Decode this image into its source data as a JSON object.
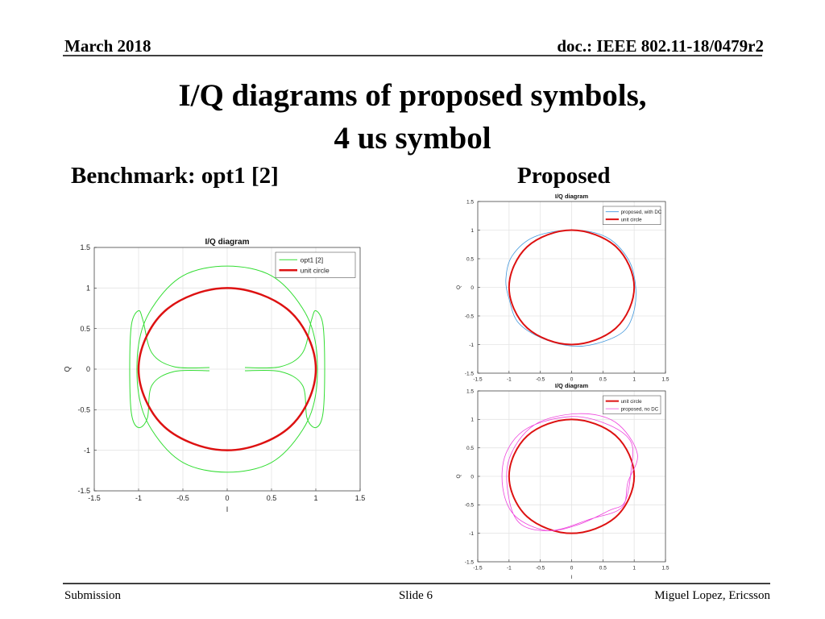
{
  "header": {
    "date": "March 2018",
    "doc": "doc.: IEEE 802.11-18/0479r2"
  },
  "title": [
    "I/Q diagrams of proposed symbols,",
    "4 us symbol"
  ],
  "left_label": "Benchmark: opt1 [2]",
  "right_label": "Proposed",
  "footer": {
    "left": "Submission",
    "center": "Slide 6",
    "right": "Miguel Lopez, Ericsson"
  },
  "chart_data": [
    {
      "type": "line",
      "title": "I/Q diagram",
      "xlabel": "I",
      "ylabel": "Q",
      "xlim": [
        -1.5,
        1.5
      ],
      "ylim": [
        -1.5,
        1.5
      ],
      "xticks": [
        -1.5,
        -1,
        -0.5,
        0,
        0.5,
        1,
        1.5
      ],
      "yticks": [
        -1.5,
        -1,
        -0.5,
        0,
        0.5,
        1,
        1.5
      ],
      "grid": true,
      "legend": "upper right",
      "series": [
        {
          "name": "opt1 [2]",
          "color": "#33dd33",
          "width": 1,
          "x": [
            0,
            0.5,
            0.85,
            1.0,
            1.0,
            0.85,
            0.5,
            0,
            -0.5,
            -0.85,
            -1.0,
            -1.0,
            -0.85,
            -0.5,
            0,
            null,
            0.2,
            0.6,
            0.85,
            0.95,
            1.0,
            1.08,
            1.1,
            1.08,
            1.0,
            0.9,
            0.85,
            0.6,
            0.2,
            null,
            -0.2,
            -0.6,
            -0.85,
            -0.95,
            -1.0,
            -1.08,
            -1.1,
            -1.08,
            -1.0,
            -0.9,
            -0.85,
            -0.6,
            -0.2
          ],
          "y": [
            1.27,
            1.15,
            0.75,
            0.3,
            -0.3,
            -0.75,
            -1.15,
            -1.27,
            -1.15,
            -0.75,
            -0.3,
            0.3,
            0.75,
            1.15,
            1.27,
            null,
            0.02,
            0.03,
            0.2,
            0.6,
            0.72,
            0.55,
            0,
            -0.55,
            -0.72,
            -0.6,
            -0.2,
            -0.03,
            -0.02,
            null,
            0.02,
            0.03,
            0.2,
            0.6,
            0.72,
            0.55,
            0,
            -0.55,
            -0.72,
            -0.6,
            -0.2,
            -0.03,
            -0.02
          ]
        },
        {
          "name": "unit circle",
          "color": "#dd1111",
          "width": 2.5,
          "x": [
            1,
            0.92,
            0.71,
            0.38,
            0,
            -0.38,
            -0.71,
            -0.92,
            -1,
            -0.92,
            -0.71,
            -0.38,
            0,
            0.38,
            0.71,
            0.92,
            1
          ],
          "y": [
            0,
            0.38,
            0.71,
            0.92,
            1,
            0.92,
            0.71,
            0.38,
            0,
            -0.38,
            -0.71,
            -0.92,
            -1,
            -0.92,
            -0.71,
            -0.38,
            0
          ]
        }
      ]
    },
    {
      "type": "line",
      "title": "I/Q diagram",
      "ylabel": "Q",
      "xlim": [
        -1.5,
        1.5
      ],
      "ylim": [
        -1.5,
        1.5
      ],
      "xticks": [
        -1.5,
        -1,
        -0.5,
        0,
        0.5,
        1,
        1.5
      ],
      "yticks": [
        -1.5,
        -1,
        -0.5,
        0,
        0.5,
        1,
        1.5
      ],
      "grid": true,
      "legend": "upper right",
      "series": [
        {
          "name": "proposed, with DC",
          "color": "#4499dd",
          "width": 0.8,
          "x": [
            0,
            0.55,
            0.9,
            1.02,
            1.0,
            0.85,
            0.5,
            0.05,
            -0.45,
            -0.85,
            -1.0,
            -1.05,
            -0.95,
            -0.6,
            0
          ],
          "y": [
            1.0,
            0.88,
            0.5,
            0.05,
            -0.4,
            -0.75,
            -0.95,
            -1.03,
            -0.9,
            -0.62,
            -0.2,
            0.15,
            0.55,
            0.88,
            1.0
          ]
        },
        {
          "name": "unit circle",
          "color": "#dd1111",
          "width": 2,
          "x": [
            1,
            0.92,
            0.71,
            0.38,
            0,
            -0.38,
            -0.71,
            -0.92,
            -1,
            -0.92,
            -0.71,
            -0.38,
            0,
            0.38,
            0.71,
            0.92,
            1
          ],
          "y": [
            0,
            0.38,
            0.71,
            0.92,
            1,
            0.92,
            0.71,
            0.38,
            0,
            -0.38,
            -0.71,
            -0.92,
            -1,
            -0.92,
            -0.71,
            -0.38,
            0
          ]
        }
      ]
    },
    {
      "type": "line",
      "title": "I/Q diagram",
      "xlabel": "I",
      "ylabel": "Q",
      "xlim": [
        -1.5,
        1.5
      ],
      "ylim": [
        -1.5,
        1.5
      ],
      "xticks": [
        -1.5,
        -1,
        -0.5,
        0,
        0.5,
        1,
        1.5
      ],
      "yticks": [
        -1.5,
        -1,
        -0.5,
        0,
        0.5,
        1,
        1.5
      ],
      "grid": true,
      "legend": "upper right",
      "series": [
        {
          "name": "unit circle",
          "color": "#dd1111",
          "width": 2,
          "x": [
            1,
            0.92,
            0.71,
            0.38,
            0,
            -0.38,
            -0.71,
            -0.92,
            -1,
            -0.92,
            -0.71,
            -0.38,
            0,
            0.38,
            0.71,
            0.92,
            1
          ],
          "y": [
            0,
            0.38,
            0.71,
            0.92,
            1,
            0.92,
            0.71,
            0.38,
            0,
            -0.38,
            -0.71,
            -0.92,
            -1,
            -0.92,
            -0.71,
            -0.38,
            0
          ]
        },
        {
          "name": "proposed, no DC",
          "color": "#ee44dd",
          "width": 0.8,
          "x": [
            0,
            0.6,
            0.95,
            0.95,
            0.85,
            0.6,
            0.1,
            -0.4,
            -0.9,
            -1.1,
            -1.05,
            -0.7,
            0,
            null,
            0.1,
            0.7,
            1.05,
            0.9,
            0.8,
            0.3,
            -0.3,
            -0.8,
            -1.0,
            -1.0,
            -0.6,
            0.1
          ],
          "y": [
            1.05,
            0.9,
            0.6,
            0.1,
            -0.45,
            -0.6,
            -0.85,
            -0.95,
            -0.7,
            -0.2,
            0.4,
            0.85,
            1.05,
            null,
            1.1,
            0.95,
            0.4,
            -0.1,
            -0.55,
            -0.75,
            -0.95,
            -0.85,
            -0.4,
            0.3,
            0.9,
            1.1
          ]
        }
      ]
    }
  ]
}
